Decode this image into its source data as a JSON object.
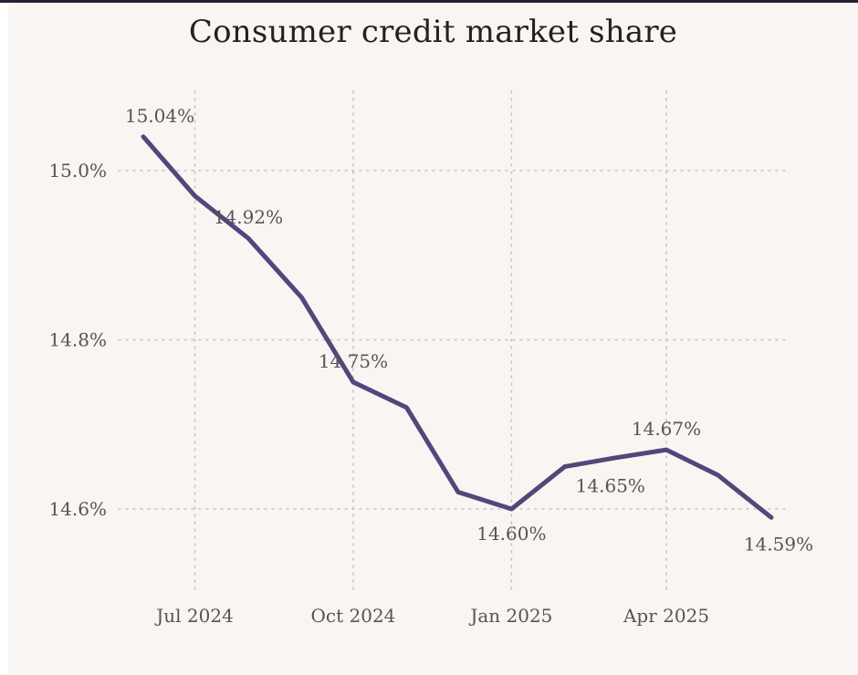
{
  "chart_data": {
    "type": "line",
    "title": "Consumer credit market share",
    "xlabel": "",
    "ylabel": "",
    "ylim": [
      14.5,
      15.1
    ],
    "grid": true,
    "y_ticks": [
      {
        "value": 14.6,
        "label": "14.6%"
      },
      {
        "value": 14.8,
        "label": "14.8%"
      },
      {
        "value": 15.0,
        "label": "15.0%"
      }
    ],
    "x_ticks": [
      {
        "date": "2024-07-01",
        "label": "Jul 2024"
      },
      {
        "date": "2024-10-01",
        "label": "Oct 2024"
      },
      {
        "date": "2025-01-01",
        "label": "Jan 2025"
      },
      {
        "date": "2025-04-01",
        "label": "Apr 2025"
      }
    ],
    "x_range": [
      "2024-06-01",
      "2025-06-01"
    ],
    "series": [
      {
        "color": "#54457a",
        "points": [
          {
            "x": "2024-06-01",
            "y": 15.04,
            "label": "15.04%"
          },
          {
            "x": "2024-07-01",
            "y": 14.97
          },
          {
            "x": "2024-08-01",
            "y": 14.92,
            "label": "14.92%"
          },
          {
            "x": "2024-09-01",
            "y": 14.85
          },
          {
            "x": "2024-10-01",
            "y": 14.75,
            "label": "14.75%"
          },
          {
            "x": "2024-11-01",
            "y": 14.72
          },
          {
            "x": "2024-12-01",
            "y": 14.62
          },
          {
            "x": "2025-01-01",
            "y": 14.6,
            "label": "14.60%"
          },
          {
            "x": "2025-02-01",
            "y": 14.65,
            "label": "14.65%"
          },
          {
            "x": "2025-03-01",
            "y": 14.66
          },
          {
            "x": "2025-04-01",
            "y": 14.67,
            "label": "14.67%"
          },
          {
            "x": "2025-05-01",
            "y": 14.64
          },
          {
            "x": "2025-06-01",
            "y": 14.59,
            "label": "14.59%"
          }
        ]
      }
    ]
  }
}
